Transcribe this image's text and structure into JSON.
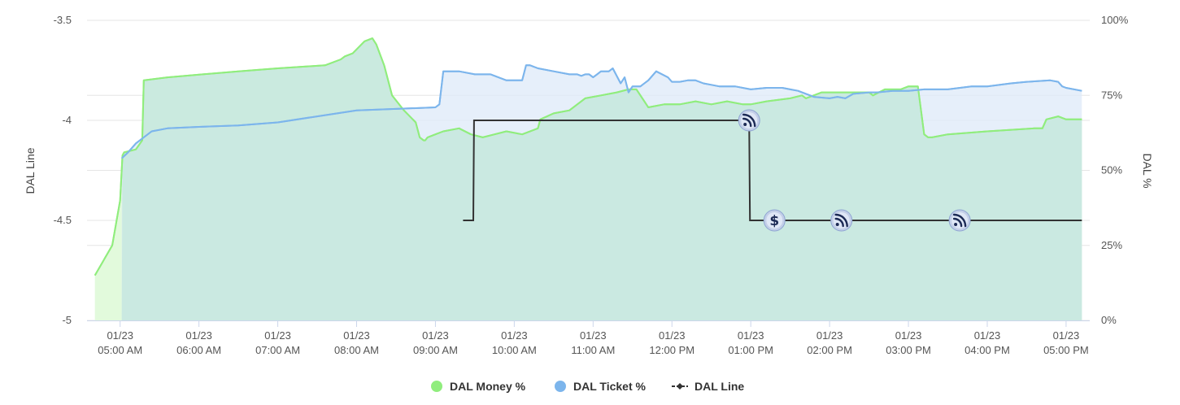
{
  "chart_data": {
    "type": "line",
    "title": "",
    "ylabel": "DAL Line",
    "y2label": "DAL %",
    "ylim": [
      -5,
      -3.5
    ],
    "y2lim": [
      0,
      100
    ],
    "yticks": [
      "-3.5",
      "-4",
      "-4.5",
      "-5"
    ],
    "yticks_values": [
      -3.5,
      -4,
      -4.5,
      -5
    ],
    "y2ticks": [
      "100%",
      "75%",
      "50%",
      "25%",
      "0%"
    ],
    "y2ticks_values": [
      100,
      75,
      50,
      25,
      0
    ],
    "xlim": [
      4.58,
      17.3
    ],
    "xticks": [
      {
        "date": "01/23",
        "time": "05:00 AM",
        "hour": 5
      },
      {
        "date": "01/23",
        "time": "06:00 AM",
        "hour": 6
      },
      {
        "date": "01/23",
        "time": "07:00 AM",
        "hour": 7
      },
      {
        "date": "01/23",
        "time": "08:00 AM",
        "hour": 8
      },
      {
        "date": "01/23",
        "time": "09:00 AM",
        "hour": 9
      },
      {
        "date": "01/23",
        "time": "10:00 AM",
        "hour": 10
      },
      {
        "date": "01/23",
        "time": "11:00 AM",
        "hour": 11
      },
      {
        "date": "01/23",
        "time": "12:00 PM",
        "hour": 12
      },
      {
        "date": "01/23",
        "time": "01:00 PM",
        "hour": 13
      },
      {
        "date": "01/23",
        "time": "02:00 PM",
        "hour": 14
      },
      {
        "date": "01/23",
        "time": "03:00 PM",
        "hour": 15
      },
      {
        "date": "01/23",
        "time": "04:00 PM",
        "hour": 16
      },
      {
        "date": "01/23",
        "time": "05:00 PM",
        "hour": 17
      }
    ],
    "grid": true,
    "legend_position": "bottom-center",
    "series": [
      {
        "name": "DAL Money %",
        "axis": "percent",
        "color": "#90ed7d",
        "fill": "#e2fadc",
        "x": [
          4.68,
          4.9,
          5.0,
          5.03,
          5.05,
          5.2,
          5.28,
          5.3,
          5.6,
          6.5,
          7.0,
          7.6,
          7.8,
          7.85,
          7.95,
          8.1,
          8.2,
          8.25,
          8.35,
          8.45,
          8.6,
          8.75,
          8.8,
          8.85,
          8.87,
          8.9,
          9.0,
          9.1,
          9.3,
          9.45,
          9.6,
          9.75,
          9.9,
          10.1,
          10.3,
          10.33,
          10.5,
          10.7,
          10.9,
          11.1,
          11.3,
          11.45,
          11.55,
          11.6,
          11.65,
          11.7,
          11.9,
          12.1,
          12.3,
          12.5,
          12.7,
          12.9,
          13.0,
          13.2,
          13.5,
          13.65,
          13.7,
          13.9,
          14.3,
          14.5,
          14.55,
          14.7,
          14.9,
          15.0,
          15.12,
          15.2,
          15.25,
          15.3,
          15.5,
          16.0,
          16.6,
          16.7,
          16.75,
          16.9,
          17.0,
          17.2
        ],
        "values": [
          15,
          25,
          40,
          55,
          56,
          57,
          60,
          80,
          81,
          83,
          84,
          85,
          87,
          88,
          89,
          93,
          94,
          92,
          85,
          75,
          70,
          66,
          61,
          60,
          60,
          61,
          62,
          63,
          64,
          62,
          61,
          62,
          63,
          62,
          64,
          67,
          69,
          70,
          74,
          75,
          76,
          77,
          77,
          75,
          73,
          71,
          72,
          72,
          73,
          72,
          73,
          72,
          72,
          73,
          74,
          75,
          74,
          76,
          76,
          76,
          75,
          77,
          77,
          78,
          78,
          62,
          61,
          61,
          62,
          63,
          64,
          64,
          67,
          68,
          67,
          67
        ]
      },
      {
        "name": "DAL Ticket %",
        "axis": "percent",
        "color": "#7cb5ec",
        "fill": "#ddeaf8",
        "x": [
          5.02,
          5.1,
          5.2,
          5.4,
          5.6,
          6.0,
          6.5,
          7.0,
          7.5,
          8.0,
          8.5,
          9.0,
          9.05,
          9.1,
          9.3,
          9.5,
          9.7,
          9.9,
          10.1,
          10.15,
          10.2,
          10.3,
          10.5,
          10.7,
          10.8,
          10.85,
          10.9,
          10.95,
          11.0,
          11.05,
          11.1,
          11.2,
          11.25,
          11.35,
          11.4,
          11.45,
          11.5,
          11.55,
          11.6,
          11.65,
          11.7,
          11.8,
          11.95,
          12.0,
          12.1,
          12.2,
          12.3,
          12.4,
          12.5,
          12.6,
          12.7,
          12.8,
          13.0,
          13.2,
          13.4,
          13.5,
          13.6,
          13.8,
          14.0,
          14.1,
          14.2,
          14.3,
          14.5,
          14.6,
          14.8,
          15.0,
          15.2,
          15.5,
          15.8,
          16.0,
          16.3,
          16.5,
          16.8,
          16.9,
          16.95,
          17.0,
          17.2
        ],
        "values": [
          54,
          56,
          59,
          63,
          64,
          64.5,
          65,
          66,
          68,
          70,
          70.5,
          71,
          72,
          83,
          83,
          82,
          82,
          80,
          80,
          85,
          85,
          84,
          83,
          82,
          82,
          81.5,
          82,
          82,
          81,
          82,
          83,
          83,
          84,
          79,
          81,
          76,
          78,
          78,
          78,
          79,
          80,
          83,
          81,
          79.5,
          79.5,
          80,
          80,
          79,
          78.5,
          78,
          78,
          78,
          77,
          77.5,
          77.5,
          77,
          76.5,
          74.5,
          74,
          74.5,
          74,
          75.5,
          76,
          76,
          76.5,
          76.5,
          77,
          77,
          78,
          78,
          79,
          79.5,
          80,
          79.5,
          78,
          77.5,
          76.5
        ]
      },
      {
        "name": "DAL Line",
        "axis": "line",
        "color": "#333333",
        "x": [
          9.35,
          9.48,
          9.49,
          12.98,
          12.99,
          17.2
        ],
        "values": [
          -4.5,
          -4.5,
          -4,
          -4,
          -4.5,
          -4.5
        ]
      }
    ],
    "annotations": [
      {
        "icon": "rss-icon",
        "hour": 12.98,
        "line_value": -4
      },
      {
        "icon": "dollar-icon",
        "hour": 13.3,
        "line_value": -4.5
      },
      {
        "icon": "rss-icon",
        "hour": 14.15,
        "line_value": -4.5
      },
      {
        "icon": "rss-icon",
        "hour": 15.65,
        "line_value": -4.5
      }
    ]
  }
}
